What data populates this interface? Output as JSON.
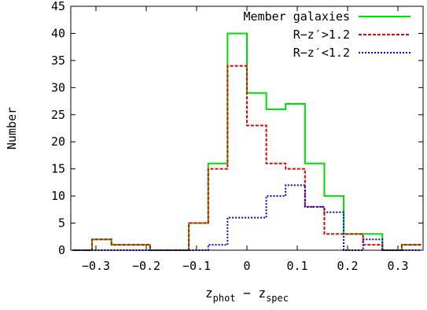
{
  "chart_data": {
    "type": "histogram",
    "xlabel": {
      "base": "z",
      "sub1": "phot",
      "mid": " − z",
      "sub2": "spec"
    },
    "ylabel": "Number",
    "xlim": [
      -0.35,
      0.35
    ],
    "ylim": [
      0,
      45
    ],
    "bin_width": 0.0385,
    "bin_edges": [
      -0.3462,
      -0.3077,
      -0.2692,
      -0.2308,
      -0.1923,
      -0.1538,
      -0.1154,
      -0.0769,
      -0.0385,
      0.0,
      0.0385,
      0.0769,
      0.1154,
      0.1538,
      0.1923,
      0.2308,
      0.2692,
      0.3077,
      0.3462
    ],
    "x_ticks": [
      {
        "value": -0.3,
        "label": "−0.3"
      },
      {
        "value": -0.2,
        "label": "−0.2"
      },
      {
        "value": -0.1,
        "label": "−0.1"
      },
      {
        "value": 0.0,
        "label": "0"
      },
      {
        "value": 0.1,
        "label": "0.1"
      },
      {
        "value": 0.2,
        "label": "0.2"
      },
      {
        "value": 0.3,
        "label": "0.3"
      }
    ],
    "y_ticks": [
      0,
      5,
      10,
      15,
      20,
      25,
      30,
      35,
      40,
      45
    ],
    "legend_position": "top-right",
    "series": [
      {
        "name": "Member galaxies",
        "color": "#00dd00",
        "dash": "solid",
        "counts": [
          0,
          2,
          1,
          1,
          0,
          0,
          5,
          16,
          40,
          29,
          26,
          27,
          16,
          10,
          3,
          3,
          0,
          1
        ]
      },
      {
        "name": "R−z′>1.2",
        "color": "#ee0000",
        "dash": "dashed",
        "counts": [
          0,
          2,
          1,
          1,
          0,
          0,
          5,
          15,
          34,
          23,
          16,
          15,
          8,
          3,
          3,
          1,
          0,
          1
        ]
      },
      {
        "name": "R−z′<1.2",
        "color": "#0000ee",
        "dash": "dotted",
        "counts": [
          0,
          0,
          0,
          0,
          0,
          0,
          0,
          1,
          6,
          6,
          10,
          12,
          8,
          7,
          0,
          2,
          0,
          0
        ]
      }
    ]
  }
}
